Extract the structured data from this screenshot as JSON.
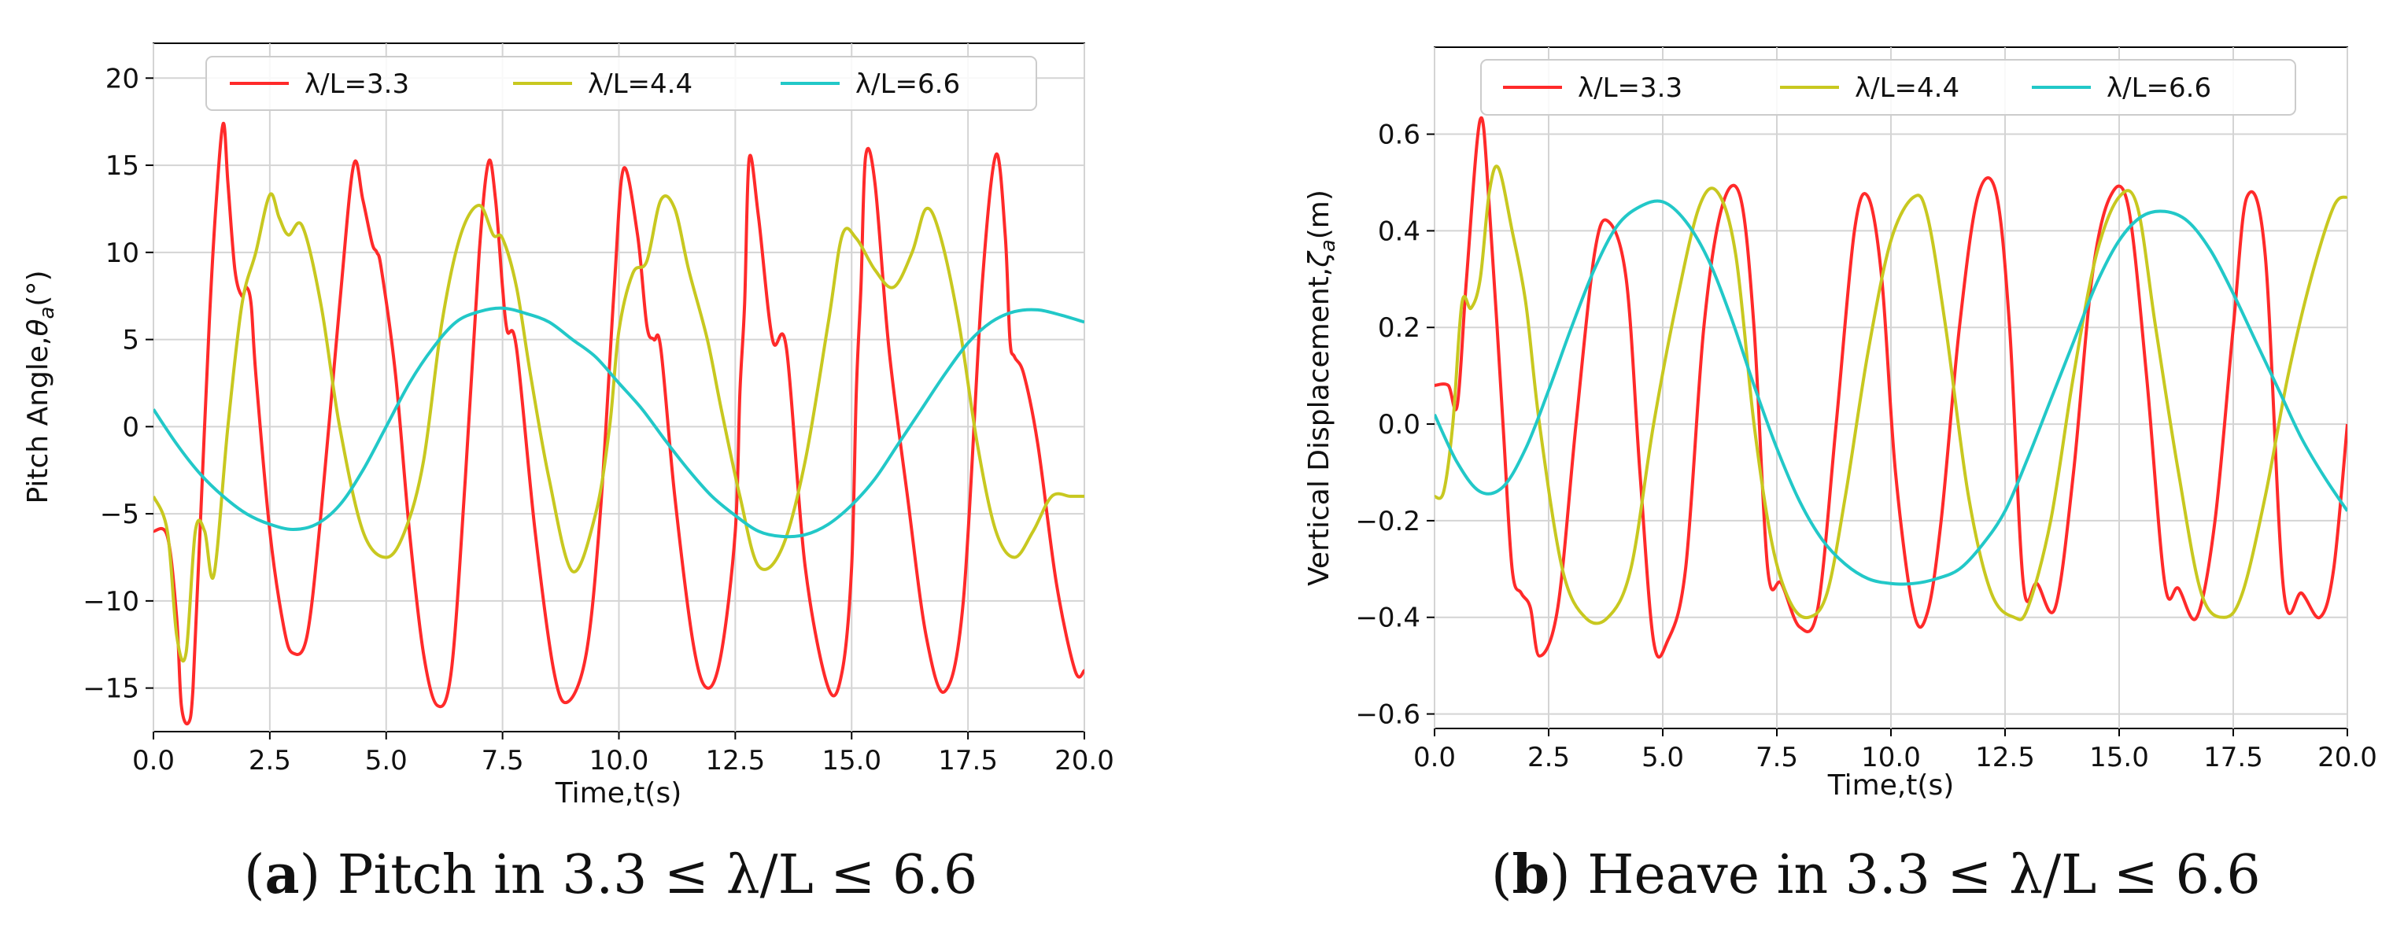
{
  "chart_data": [
    {
      "id": "pitch",
      "type": "line",
      "title": "",
      "xlabel": "Time,t(s)",
      "ylabel_main": "Pitch Angle,",
      "ylabel_symbol": "θ",
      "ylabel_subscript": "a",
      "ylabel_unit": "(°)",
      "xlim": [
        0,
        20
      ],
      "ylim": [
        -17.5,
        22
      ],
      "xticks": [
        "0.0",
        "2.5",
        "5.0",
        "7.5",
        "10.0",
        "12.5",
        "15.0",
        "17.5",
        "20.0"
      ],
      "xtick_values": [
        0,
        2.5,
        5,
        7.5,
        10,
        12.5,
        15,
        17.5,
        20
      ],
      "yticks": [
        "−15",
        "−10",
        "−5",
        "0",
        "5",
        "10",
        "15",
        "20"
      ],
      "ytick_values": [
        -15,
        -10,
        -5,
        0,
        5,
        10,
        15,
        20
      ],
      "grid": true,
      "legend_placement": "top",
      "series": [
        {
          "name": "λ/L=3.3",
          "color": "#ff2a2a",
          "x": [
            0,
            0.3,
            0.5,
            0.6,
            0.75,
            0.85,
            1.0,
            1.2,
            1.35,
            1.5,
            1.6,
            1.75,
            1.9,
            2.0,
            2.1,
            2.2,
            2.5,
            2.8,
            3.0,
            3.3,
            3.6,
            4.0,
            4.3,
            4.5,
            4.7,
            4.8,
            4.9,
            5.2,
            5.5,
            5.8,
            6.1,
            6.4,
            6.7,
            7.0,
            7.2,
            7.35,
            7.5,
            7.6,
            7.8,
            8.2,
            8.6,
            8.9,
            9.3,
            9.6,
            9.9,
            10.1,
            10.4,
            10.6,
            10.75,
            10.9,
            11.2,
            11.6,
            11.9,
            12.2,
            12.5,
            12.6,
            12.7,
            12.8,
            13.0,
            13.3,
            13.6,
            14.0,
            14.5,
            14.8,
            15.0,
            15.1,
            15.2,
            15.3,
            15.5,
            15.8,
            16.2,
            16.6,
            17.0,
            17.4,
            17.8,
            18.1,
            18.3,
            18.4,
            18.5,
            18.7,
            19.0,
            19.4,
            19.8,
            20.0
          ],
          "y": [
            -6,
            -6.3,
            -11,
            -16,
            -17,
            -15,
            -6,
            6,
            13,
            17.4,
            14,
            9,
            7.5,
            8,
            7,
            3,
            -6,
            -11.5,
            -13,
            -12,
            -5,
            7,
            15,
            13,
            10.5,
            10,
            9,
            3,
            -6,
            -13,
            -16,
            -14,
            -3,
            10,
            15.2,
            13,
            8,
            5.5,
            4.5,
            -6,
            -14,
            -15.8,
            -13,
            -5,
            8,
            14.8,
            11,
            5.8,
            5,
            4.5,
            -4,
            -12.5,
            -15,
            -13,
            -6,
            2,
            7,
            15.4,
            12,
            5,
            4.5,
            -8,
            -15,
            -14,
            -8,
            2,
            8,
            15.5,
            14,
            4.5,
            -4,
            -12,
            -15.2,
            -10,
            8,
            15.6,
            11,
            5,
            4,
            3,
            -1,
            -9,
            -14,
            -14
          ]
        },
        {
          "name": "λ/L=4.4",
          "color": "#c8c820",
          "x": [
            0,
            0.3,
            0.5,
            0.7,
            0.9,
            1.1,
            1.3,
            1.6,
            1.9,
            2.2,
            2.5,
            2.7,
            2.9,
            3.2,
            3.6,
            4.0,
            4.5,
            5.0,
            5.4,
            5.8,
            6.2,
            6.6,
            7.0,
            7.3,
            7.5,
            7.8,
            8.1,
            8.5,
            9.0,
            9.5,
            9.8,
            10.0,
            10.3,
            10.6,
            10.9,
            11.2,
            11.5,
            11.9,
            12.2,
            12.6,
            13.0,
            13.5,
            14.0,
            14.5,
            14.8,
            15.1,
            15.5,
            15.9,
            16.3,
            16.6,
            16.9,
            17.3,
            17.7,
            18.1,
            18.5,
            18.9,
            19.3,
            19.7,
            20.0
          ],
          "y": [
            -4,
            -6,
            -12,
            -13,
            -6,
            -6,
            -8.5,
            0,
            7,
            10,
            13.3,
            12,
            11,
            11.5,
            7,
            0,
            -6,
            -7.5,
            -6,
            -2,
            6,
            11,
            12.7,
            11,
            10.8,
            8,
            3,
            -3,
            -8.3,
            -5,
            0,
            5.5,
            8.8,
            9.5,
            13,
            12.5,
            9,
            5,
            1,
            -4,
            -8,
            -7,
            -2,
            6,
            11,
            10.8,
            9,
            8,
            10,
            12.5,
            11,
            6,
            -1,
            -6,
            -7.5,
            -6,
            -4,
            -4,
            -4
          ]
        },
        {
          "name": "λ/L=6.6",
          "color": "#22c8c8",
          "x": [
            0,
            0.5,
            1.0,
            1.5,
            2.0,
            2.5,
            3.0,
            3.5,
            4.0,
            4.5,
            5.0,
            5.5,
            6.0,
            6.5,
            7.0,
            7.5,
            8.0,
            8.5,
            9.0,
            9.5,
            10.0,
            10.5,
            11.0,
            11.5,
            12.0,
            12.5,
            13.0,
            13.5,
            14.0,
            14.5,
            15.0,
            15.5,
            16.0,
            16.5,
            17.0,
            17.5,
            18.0,
            18.5,
            19.0,
            19.5,
            20.0
          ],
          "y": [
            1,
            -1,
            -2.7,
            -4,
            -5,
            -5.6,
            -5.9,
            -5.6,
            -4.5,
            -2.5,
            0,
            2.5,
            4.5,
            6,
            6.6,
            6.8,
            6.5,
            6,
            5,
            4,
            2.5,
            1,
            -0.8,
            -2.5,
            -4,
            -5.1,
            -6,
            -6.3,
            -6.2,
            -5.6,
            -4.5,
            -3,
            -1,
            1,
            3,
            4.8,
            6,
            6.6,
            6.7,
            6.4,
            6
          ]
        }
      ]
    },
    {
      "id": "heave",
      "type": "line",
      "title": "",
      "xlabel": "Time,t(s)",
      "ylabel_main": "Vertical Displacement,",
      "ylabel_symbol": "ζ",
      "ylabel_subscript": "a",
      "ylabel_unit": "(m)",
      "xlim": [
        0,
        20
      ],
      "ylim": [
        -0.63,
        0.78
      ],
      "xticks": [
        "0.0",
        "2.5",
        "5.0",
        "7.5",
        "10.0",
        "12.5",
        "15.0",
        "17.5",
        "20.0"
      ],
      "xtick_values": [
        0,
        2.5,
        5,
        7.5,
        10,
        12.5,
        15,
        17.5,
        20
      ],
      "yticks": [
        "−0.6",
        "−0.4",
        "−0.2",
        "0.0",
        "0.2",
        "0.4",
        "0.6"
      ],
      "ytick_values": [
        -0.6,
        -0.4,
        -0.2,
        0,
        0.2,
        0.4,
        0.6
      ],
      "grid": true,
      "legend_placement": "top",
      "series": [
        {
          "name": "λ/L=3.3",
          "color": "#ff2a2a",
          "x": [
            0,
            0.3,
            0.5,
            0.7,
            1.0,
            1.2,
            1.5,
            1.7,
            1.9,
            2.1,
            2.3,
            2.7,
            3.1,
            3.5,
            3.8,
            4.2,
            4.5,
            4.8,
            5.1,
            5.5,
            5.9,
            6.3,
            6.7,
            7.0,
            7.3,
            7.6,
            8.0,
            8.4,
            8.8,
            9.2,
            9.5,
            9.8,
            10.1,
            10.5,
            10.8,
            11.1,
            11.5,
            11.9,
            12.3,
            12.6,
            12.9,
            13.2,
            13.6,
            14.0,
            14.4,
            14.8,
            15.2,
            15.6,
            16.0,
            16.3,
            16.7,
            17.1,
            17.5,
            17.8,
            18.2,
            18.6,
            19.0,
            19.4,
            19.7,
            20.0
          ],
          "y": [
            0.08,
            0.08,
            0.04,
            0.3,
            0.63,
            0.45,
            0,
            -0.3,
            -0.35,
            -0.38,
            -0.48,
            -0.38,
            0,
            0.35,
            0.42,
            0.3,
            -0.1,
            -0.45,
            -0.45,
            -0.3,
            0.2,
            0.45,
            0.47,
            0.2,
            -0.3,
            -0.33,
            -0.42,
            -0.38,
            0,
            0.4,
            0.47,
            0.3,
            -0.1,
            -0.39,
            -0.39,
            -0.2,
            0.2,
            0.47,
            0.48,
            0.2,
            -0.33,
            -0.33,
            -0.38,
            -0.1,
            0.3,
            0.47,
            0.45,
            0.1,
            -0.33,
            -0.34,
            -0.4,
            -0.2,
            0.2,
            0.47,
            0.35,
            -0.34,
            -0.35,
            -0.4,
            -0.3,
            0
          ]
        },
        {
          "name": "λ/L=4.4",
          "color": "#c8c820",
          "x": [
            0,
            0.2,
            0.4,
            0.6,
            0.8,
            1.0,
            1.2,
            1.4,
            1.7,
            2.0,
            2.3,
            2.8,
            3.3,
            3.8,
            4.3,
            4.8,
            5.3,
            5.8,
            6.2,
            6.6,
            7.0,
            7.4,
            7.8,
            8.2,
            8.6,
            9.0,
            9.5,
            10.0,
            10.5,
            10.8,
            11.2,
            11.7,
            12.2,
            12.7,
            13.0,
            13.5,
            14.0,
            14.5,
            15.0,
            15.4,
            15.8,
            16.3,
            16.8,
            17.3,
            17.7,
            18.2,
            18.7,
            19.2,
            19.7,
            20.0
          ],
          "y": [
            -0.15,
            -0.14,
            0,
            0.25,
            0.24,
            0.3,
            0.48,
            0.53,
            0.4,
            0.25,
            0,
            -0.3,
            -0.4,
            -0.4,
            -0.3,
            0,
            0.25,
            0.45,
            0.48,
            0.35,
            0,
            -0.25,
            -0.37,
            -0.4,
            -0.35,
            -0.15,
            0.15,
            0.38,
            0.47,
            0.43,
            0.2,
            -0.15,
            -0.35,
            -0.4,
            -0.38,
            -0.2,
            0.1,
            0.35,
            0.47,
            0.45,
            0.2,
            -0.1,
            -0.35,
            -0.4,
            -0.35,
            -0.15,
            0.1,
            0.3,
            0.45,
            0.47
          ]
        },
        {
          "name": "λ/L=6.6",
          "color": "#22c8c8",
          "x": [
            0,
            0.5,
            1.0,
            1.5,
            2.0,
            2.5,
            3.0,
            3.5,
            4.0,
            4.5,
            5.0,
            5.5,
            6.0,
            6.5,
            7.0,
            7.5,
            8.0,
            8.5,
            9.0,
            9.5,
            10.0,
            10.5,
            11.0,
            11.5,
            12.0,
            12.5,
            13.0,
            13.5,
            14.0,
            14.5,
            15.0,
            15.5,
            16.0,
            16.5,
            17.0,
            17.5,
            18.0,
            18.5,
            19.0,
            19.5,
            20.0
          ],
          "y": [
            0.02,
            -0.08,
            -0.14,
            -0.13,
            -0.05,
            0.07,
            0.2,
            0.32,
            0.41,
            0.45,
            0.46,
            0.42,
            0.34,
            0.22,
            0.08,
            -0.05,
            -0.16,
            -0.24,
            -0.29,
            -0.32,
            -0.33,
            -0.33,
            -0.32,
            -0.3,
            -0.25,
            -0.18,
            -0.07,
            0.05,
            0.17,
            0.29,
            0.38,
            0.43,
            0.44,
            0.42,
            0.36,
            0.27,
            0.17,
            0.07,
            -0.03,
            -0.11,
            -0.18
          ]
        }
      ]
    }
  ],
  "captions": [
    {
      "label": "a",
      "text": "Pitch in 3.3 ≤ λ/L ≤ 6.6",
      "open": "(",
      "close": ")"
    },
    {
      "label": "b",
      "text": "Heave in 3.3 ≤ λ/L ≤ 6.6",
      "open": "(",
      "close": ")"
    }
  ]
}
